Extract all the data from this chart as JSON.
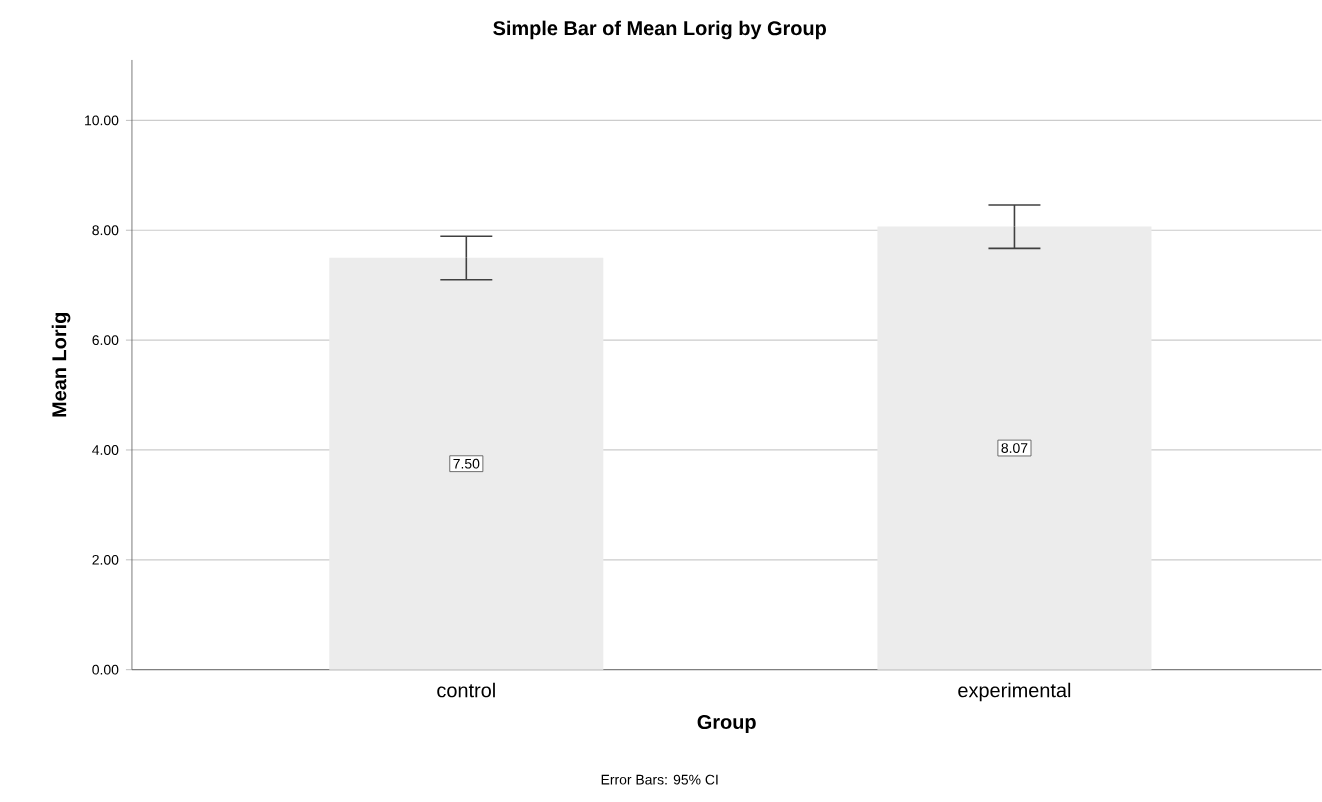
{
  "chart_data": {
    "type": "bar",
    "title": "Simple Bar of Mean Lorig by Group",
    "xlabel": "Group",
    "ylabel": "Mean Lorig",
    "categories": [
      "control",
      "experimental"
    ],
    "values": [
      7.5,
      8.07
    ],
    "value_labels": [
      "7.50",
      "8.07"
    ],
    "errors": [
      [
        7.1,
        7.89
      ],
      [
        7.67,
        8.46
      ]
    ],
    "color": "#ececec",
    "ylim": [
      0,
      11.1
    ],
    "yticks": [
      {
        "value": 0,
        "label": "0.00"
      },
      {
        "value": 2,
        "label": "2.00"
      },
      {
        "value": 4,
        "label": "4.00"
      },
      {
        "value": 6,
        "label": "6.00"
      },
      {
        "value": 8,
        "label": "8.00"
      },
      {
        "value": 10,
        "label": "10.00"
      }
    ],
    "grid": "y",
    "annotations": [
      "Error Bars: 95% CI"
    ]
  }
}
